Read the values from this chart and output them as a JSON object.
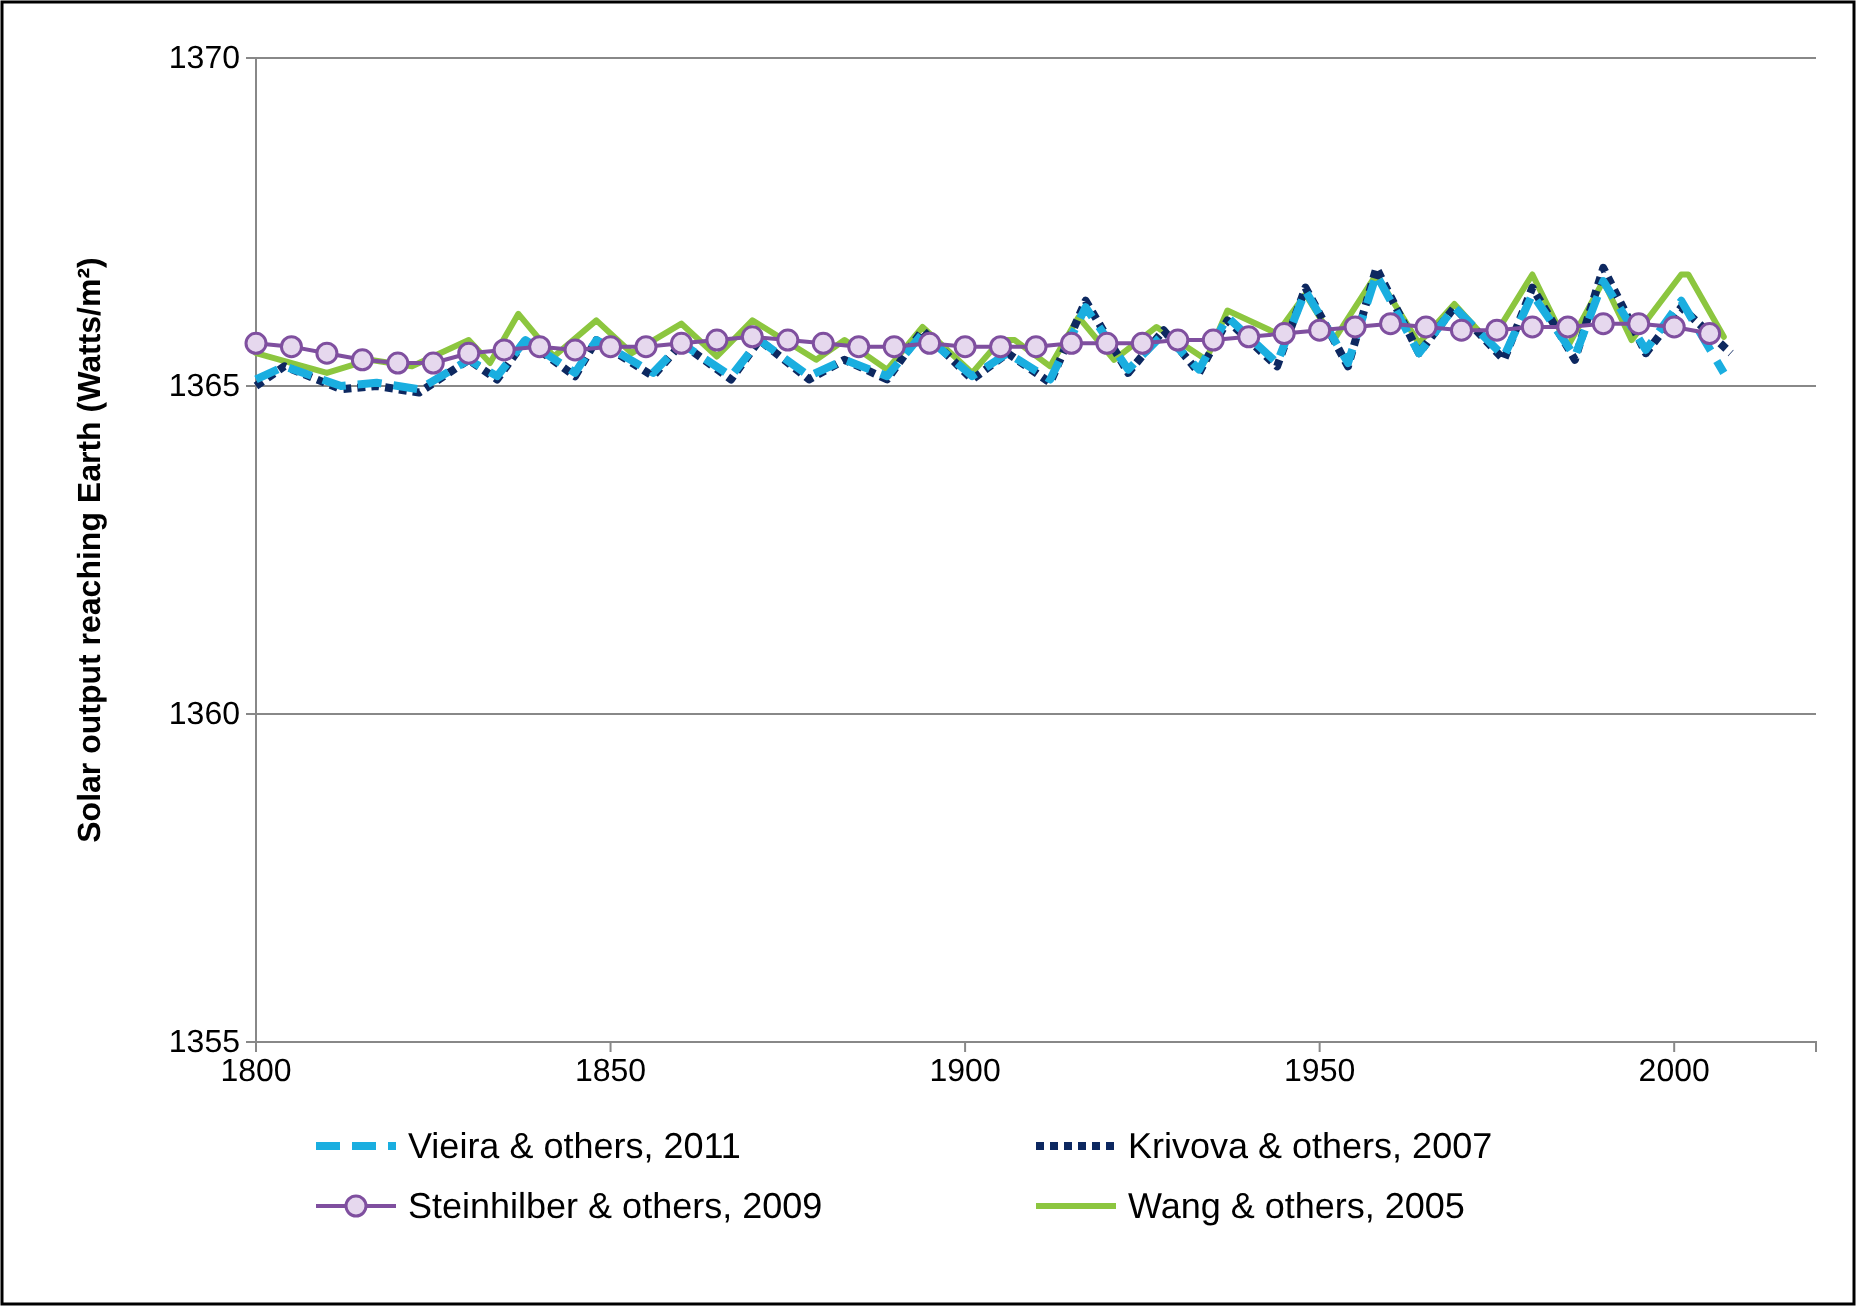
{
  "chart_data": {
    "type": "line",
    "ylabel": "Solar output reaching Earth (Watts/m²)",
    "xlim": [
      1800,
      2020
    ],
    "xticks": [
      1800,
      1850,
      1900,
      1950,
      2000
    ],
    "ylim": [
      1355,
      1370
    ],
    "yticks": [
      1355,
      1360,
      1365,
      1370
    ],
    "grid": "y",
    "legend": "bottom",
    "series": [
      {
        "name": "Vieira & others, 2011",
        "color": "#1aaee0",
        "line_style": "dashed",
        "marker": "none",
        "x": [
          1800,
          1804,
          1812,
          1817,
          1823,
          1830,
          1834,
          1838,
          1845,
          1848,
          1856,
          1860,
          1867,
          1871,
          1878,
          1883,
          1889,
          1894,
          1901,
          1906,
          1912,
          1917,
          1923,
          1928,
          1933,
          1937,
          1944,
          1948,
          1954,
          1958,
          1964,
          1969,
          1976,
          1980,
          1986,
          1990,
          1996,
          2001,
          2007
        ],
        "values": [
          1365.1,
          1365.3,
          1365.0,
          1365.05,
          1364.95,
          1365.4,
          1365.15,
          1365.7,
          1365.2,
          1365.7,
          1365.2,
          1365.65,
          1365.15,
          1365.7,
          1365.15,
          1365.4,
          1365.15,
          1365.8,
          1365.15,
          1365.5,
          1365.1,
          1366.2,
          1365.25,
          1365.8,
          1365.25,
          1366.05,
          1365.35,
          1366.45,
          1365.35,
          1366.7,
          1365.5,
          1366.2,
          1365.45,
          1366.4,
          1365.45,
          1366.6,
          1365.55,
          1366.3,
          1365.2
        ]
      },
      {
        "name": "Krivova & others, 2007",
        "color": "#0d2860",
        "line_style": "dotted",
        "marker": "none",
        "x": [
          1800,
          1804,
          1812,
          1817,
          1823,
          1830,
          1834,
          1838,
          1845,
          1848,
          1856,
          1860,
          1867,
          1871,
          1878,
          1883,
          1889,
          1894,
          1901,
          1906,
          1912,
          1917,
          1923,
          1928,
          1933,
          1937,
          1944,
          1948,
          1954,
          1958,
          1964,
          1969,
          1976,
          1980,
          1986,
          1990,
          1996,
          2001,
          2008
        ],
        "values": [
          1365.0,
          1365.3,
          1364.95,
          1365.0,
          1364.9,
          1365.4,
          1365.1,
          1365.7,
          1365.15,
          1365.7,
          1365.15,
          1365.65,
          1365.1,
          1365.7,
          1365.1,
          1365.4,
          1365.1,
          1365.85,
          1365.1,
          1365.5,
          1365.05,
          1366.3,
          1365.2,
          1365.85,
          1365.2,
          1366.0,
          1365.3,
          1366.5,
          1365.3,
          1366.8,
          1365.5,
          1366.2,
          1365.4,
          1366.5,
          1365.4,
          1366.8,
          1365.5,
          1366.2,
          1365.5
        ]
      },
      {
        "name": "Steinhilber & others, 2009",
        "color": "#7f4f9f",
        "line_style": "solid",
        "marker": "circle",
        "x": [
          1800,
          1805,
          1810,
          1815,
          1820,
          1825,
          1830,
          1835,
          1840,
          1845,
          1850,
          1855,
          1860,
          1865,
          1870,
          1875,
          1880,
          1885,
          1890,
          1895,
          1900,
          1905,
          1910,
          1915,
          1920,
          1925,
          1930,
          1935,
          1940,
          1945,
          1950,
          1955,
          1960,
          1965,
          1970,
          1975,
          1980,
          1985,
          1990,
          1995,
          2000,
          2005
        ],
        "values": [
          1365.65,
          1365.6,
          1365.5,
          1365.4,
          1365.35,
          1365.35,
          1365.5,
          1365.55,
          1365.6,
          1365.55,
          1365.6,
          1365.6,
          1365.65,
          1365.7,
          1365.75,
          1365.7,
          1365.65,
          1365.6,
          1365.6,
          1365.65,
          1365.6,
          1365.6,
          1365.6,
          1365.65,
          1365.65,
          1365.65,
          1365.7,
          1365.7,
          1365.75,
          1365.8,
          1365.85,
          1365.9,
          1365.95,
          1365.9,
          1365.85,
          1365.85,
          1365.9,
          1365.9,
          1365.95,
          1365.95,
          1365.9,
          1365.8
        ]
      },
      {
        "name": "Wang & others, 2005",
        "color": "#8cc63f",
        "line_style": "solid",
        "marker": "none",
        "x": [
          1800,
          1810,
          1816,
          1822,
          1830,
          1833,
          1837,
          1842,
          1848,
          1853,
          1860,
          1865,
          1870,
          1879,
          1883,
          1889,
          1894,
          1901,
          1905,
          1907,
          1912,
          1916,
          1921,
          1927,
          1934,
          1937,
          1944,
          1948,
          1952,
          1958,
          1964,
          1969,
          1974,
          1980,
          1985,
          1990,
          1994,
          2001,
          2002,
          2007
        ],
        "values": [
          1365.5,
          1365.2,
          1365.4,
          1365.3,
          1365.7,
          1365.35,
          1366.1,
          1365.45,
          1366.0,
          1365.5,
          1365.95,
          1365.45,
          1366.0,
          1365.4,
          1365.7,
          1365.25,
          1365.9,
          1365.2,
          1365.7,
          1365.7,
          1365.3,
          1366.05,
          1365.4,
          1365.9,
          1365.4,
          1366.15,
          1365.8,
          1366.4,
          1365.7,
          1366.7,
          1365.65,
          1366.25,
          1365.65,
          1366.7,
          1365.6,
          1366.6,
          1365.7,
          1366.7,
          1366.7,
          1365.75
        ]
      }
    ]
  }
}
